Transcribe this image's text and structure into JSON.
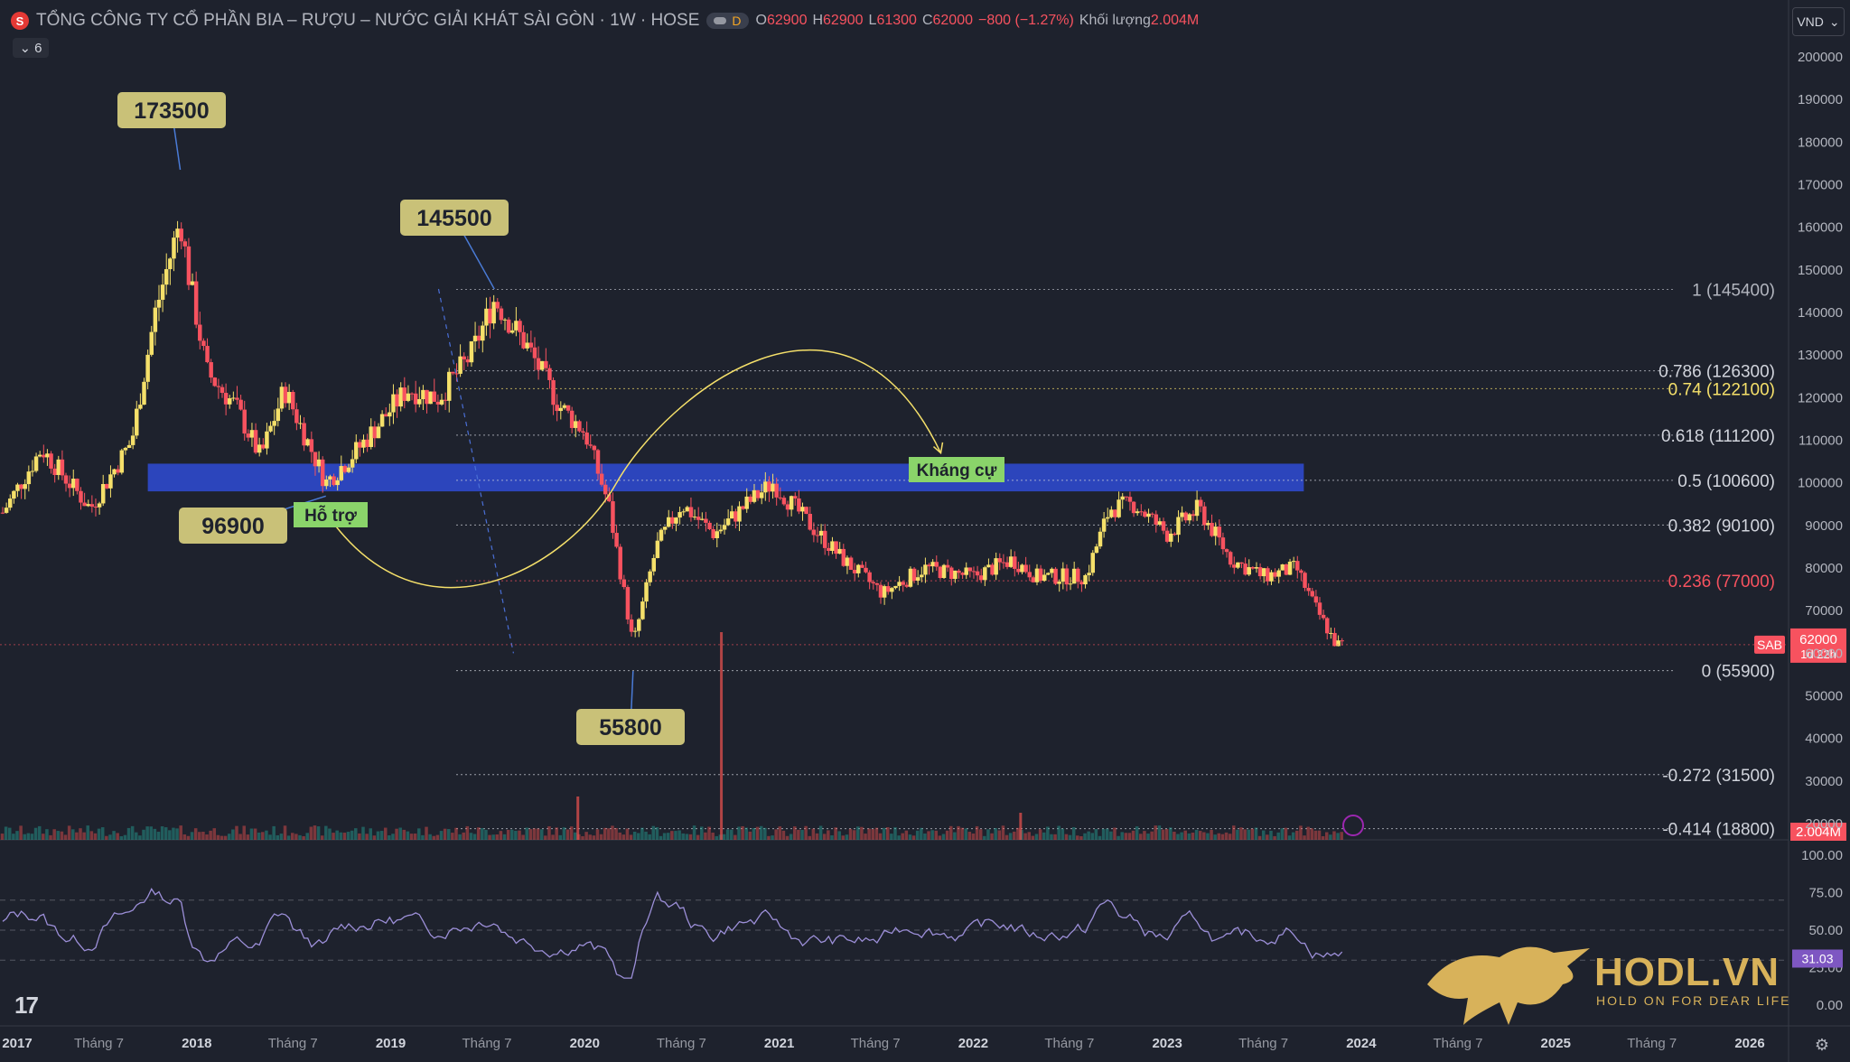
{
  "header": {
    "title": "TỔNG CÔNG TY CỔ PHẦN BIA – RƯỢU – NƯỚC GIẢI KHÁT SÀI GÒN · 1W · HOSE",
    "badge": "D",
    "o_key": "O",
    "o_val": "62900",
    "h_key": "H",
    "h_val": "62900",
    "l_key": "L",
    "l_val": "61300",
    "c_key": "C",
    "c_val": "62000",
    "change": "−800 (−1.27%)",
    "vol_key": "Khối lượng",
    "vol_val": "2.004M",
    "collapse_count": "6",
    "currency": "VND"
  },
  "colors": {
    "up": "#f5e06a",
    "down": "#f7525f",
    "bg": "#1e222d",
    "zone": "#2f4bd6",
    "tag": "#c9c178",
    "green_label": "#4caf50"
  },
  "chart_data": {
    "type": "candlestick",
    "symbol": "SAB",
    "timeframe": "1W",
    "price_axis": {
      "min": 0,
      "max": 200000,
      "ticks": [
        "200000",
        "190000",
        "180000",
        "170000",
        "160000",
        "150000",
        "140000",
        "130000",
        "120000",
        "110000",
        "100000",
        "90000",
        "80000",
        "70000",
        "60000",
        "50000",
        "40000",
        "30000",
        "20000"
      ]
    },
    "time_axis": {
      "ticks": [
        "2017",
        "Tháng 7",
        "2018",
        "Tháng 7",
        "2019",
        "Tháng 7",
        "2020",
        "Tháng 7",
        "2021",
        "Tháng 7",
        "2022",
        "Tháng 7",
        "2023",
        "Tháng 7",
        "2024",
        "Tháng 7",
        "2025",
        "Tháng 7",
        "2026"
      ],
      "year_start": 2017,
      "year_end": 2026
    },
    "price_path": [
      [
        "2017-01-01",
        93000
      ],
      [
        "2017-03-15",
        108000
      ],
      [
        "2017-06-15",
        94000
      ],
      [
        "2017-09-01",
        110000
      ],
      [
        "2017-10-15",
        140000
      ],
      [
        "2017-12-01",
        162000
      ],
      [
        "2017-12-15",
        150000
      ],
      [
        "2018-01-20",
        126000
      ],
      [
        "2018-03-15",
        118000
      ],
      [
        "2018-05-01",
        106000
      ],
      [
        "2018-06-15",
        122000
      ],
      [
        "2018-09-01",
        100000
      ],
      [
        "2018-11-01",
        108000
      ],
      [
        "2019-02-01",
        122000
      ],
      [
        "2019-04-01",
        120000
      ],
      [
        "2019-06-01",
        130000
      ],
      [
        "2019-07-15",
        143000
      ],
      [
        "2019-09-15",
        132000
      ],
      [
        "2019-11-15",
        118000
      ],
      [
        "2020-01-01",
        112000
      ],
      [
        "2020-02-15",
        95000
      ],
      [
        "2020-04-01",
        62000
      ],
      [
        "2020-05-15",
        85000
      ],
      [
        "2020-07-01",
        95000
      ],
      [
        "2020-09-01",
        88000
      ],
      [
        "2020-11-01",
        95000
      ],
      [
        "2020-12-20",
        100000
      ],
      [
        "2021-03-01",
        90000
      ],
      [
        "2021-05-01",
        82000
      ],
      [
        "2021-07-15",
        74000
      ],
      [
        "2021-10-01",
        80000
      ],
      [
        "2022-01-01",
        78000
      ],
      [
        "2022-03-15",
        82000
      ],
      [
        "2022-05-01",
        78000
      ],
      [
        "2022-08-01",
        78000
      ],
      [
        "2022-09-15",
        94000
      ],
      [
        "2022-11-01",
        95000
      ],
      [
        "2023-01-01",
        88000
      ],
      [
        "2023-03-01",
        94000
      ],
      [
        "2023-05-01",
        82000
      ],
      [
        "2023-07-01",
        78000
      ],
      [
        "2023-09-01",
        80000
      ],
      [
        "2023-10-01",
        72000
      ],
      [
        "2023-11-15",
        62000
      ]
    ],
    "current_price": {
      "symbol": "SAB",
      "price": "62000",
      "countdown": "1d 22h"
    },
    "volume": {
      "label": "2.004M"
    },
    "fibonacci": [
      {
        "label": "1 (145400)",
        "price": 145400,
        "color": "#b2b5be"
      },
      {
        "label": "0.786 (126300)",
        "price": 126300,
        "color": "#d1d4dc"
      },
      {
        "label": "0.74 (122100)",
        "price": 122100,
        "color": "#f5e06a"
      },
      {
        "label": "0.618 (111200)",
        "price": 111200,
        "color": "#d1d4dc"
      },
      {
        "label": "0.5 (100600)",
        "price": 100600,
        "color": "#d1d4dc"
      },
      {
        "label": "0.382 (90100)",
        "price": 90100,
        "color": "#d1d4dc"
      },
      {
        "label": "0.236 (77000)",
        "price": 77000,
        "color": "#f7525f"
      },
      {
        "label": "0 (55900)",
        "price": 55900,
        "color": "#d1d4dc"
      },
      {
        "label": "-0.272 (31500)",
        "price": 31500,
        "color": "#d1d4dc"
      },
      {
        "label": "-0.414 (18800)",
        "price": 18800,
        "color": "#d1d4dc"
      }
    ],
    "annotations": [
      {
        "text": "173500",
        "date": "2017-12-01",
        "price": 173500
      },
      {
        "text": "145500",
        "date": "2019-07-15",
        "price": 145500
      },
      {
        "text": "96900",
        "date": "2018-09-01",
        "price": 96900
      },
      {
        "text": "55800",
        "date": "2020-04-01",
        "price": 55800
      }
    ],
    "labels": {
      "support": "Hỗ trợ",
      "resistance": "Kháng cự"
    },
    "zone": {
      "price_low": 98000,
      "price_high": 104500,
      "date_start": "2017-10-01",
      "date_end": "2023-09-15"
    },
    "rsi": {
      "ticks": [
        "100.00",
        "75.00",
        "50.00",
        "25.00",
        "0.00"
      ],
      "value": "31.03",
      "upper": 70,
      "lower": 30
    },
    "watermark": {
      "name": "HODL.VN",
      "tagline": "HOLD ON FOR DEAR LIFE"
    }
  }
}
